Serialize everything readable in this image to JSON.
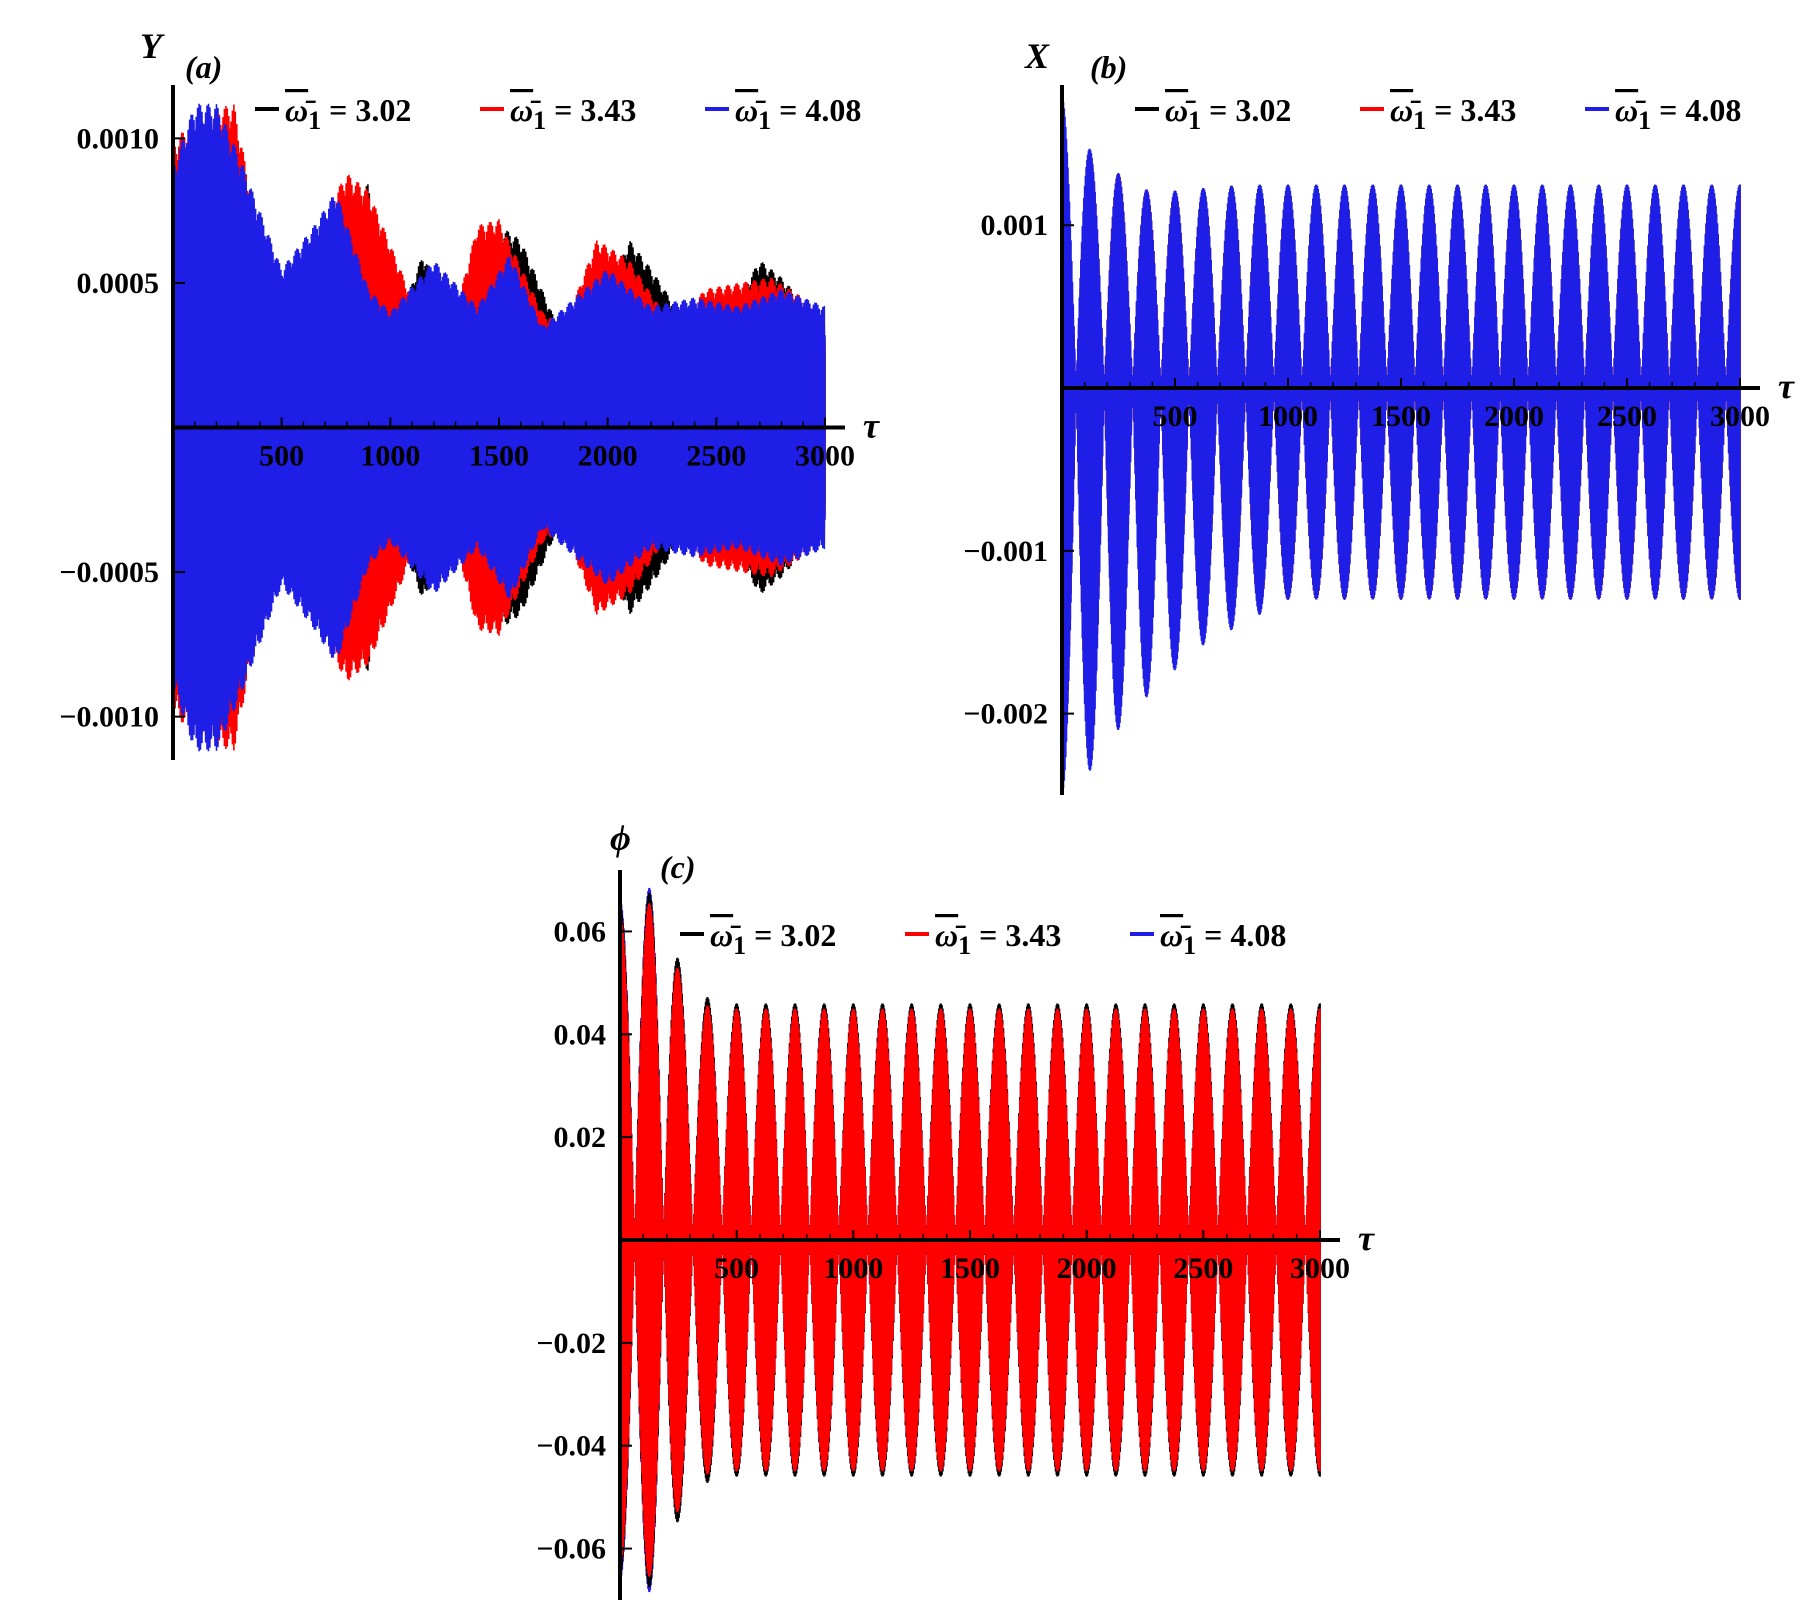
{
  "chart_data": [
    {
      "type": "line",
      "panel_label": "(a)",
      "ylabel": "Y",
      "xlabel": "τ",
      "xlim": [
        0,
        3000
      ],
      "ylim": [
        -0.00115,
        0.00115
      ],
      "xticks": [
        500,
        1000,
        1500,
        2000,
        2500,
        3000
      ],
      "xtick_labels": [
        "500",
        "1000",
        "1500",
        "2000",
        "2500",
        "3000"
      ],
      "yticks": [
        0.001,
        0.0005,
        -0.0005,
        -0.001
      ],
      "ytick_labels": [
        "0.0010",
        "0.0005",
        "−0.0005",
        "−0.0010"
      ],
      "legend_placement": "top",
      "series": [
        {
          "name": "ω̄₁ = 3.02",
          "legend_symbol": "ω̄",
          "legend_sub": "1",
          "legend_value": "= 3.02",
          "color": "#000000",
          "envelope": {
            "tau": [
              0,
              100,
              240,
              280,
              400,
              440,
              600,
              700,
              900,
              1000,
              1150,
              1300,
              1500,
              1600,
              1800,
              1900,
              2100,
              2200,
              2400,
              2500,
              2700,
              2800,
              3000
            ],
            "amp": [
              0.00095,
              0.00105,
              0.00108,
              0.00102,
              0.00035,
              0.00028,
              0.00062,
              0.00055,
              0.00085,
              0.0003,
              0.0006,
              0.00035,
              0.0007,
              0.00065,
              0.0003,
              0.0003,
              0.00065,
              0.00055,
              0.00032,
              0.00032,
              0.00058,
              0.00052,
              0.00035
            ]
          }
        },
        {
          "name": "ω̄₁ = 3.43",
          "legend_symbol": "ω̄",
          "legend_sub": "1",
          "legend_value": "= 3.43",
          "color": "#ff0000",
          "envelope": {
            "tau": [
              0,
              100,
              280,
              350,
              500,
              700,
              800,
              900,
              1100,
              1300,
              1400,
              1500,
              1700,
              1800,
              1950,
              2100,
              2300,
              2450,
              2600,
              2750,
              2900,
              3000
            ],
            "amp": [
              0.00098,
              0.00108,
              0.00112,
              0.00085,
              0.00045,
              0.00075,
              0.00088,
              0.00082,
              0.00045,
              0.0004,
              0.0007,
              0.00072,
              0.0004,
              0.00035,
              0.00065,
              0.00058,
              0.00035,
              0.00048,
              0.0005,
              0.00052,
              0.00045,
              0.0004
            ]
          }
        },
        {
          "name": "ω̄₁ = 4.08",
          "legend_symbol": "ω̄",
          "legend_sub": "1",
          "legend_value": "= 4.08",
          "color": "#1e1ee6",
          "envelope": {
            "tau": [
              0,
              100,
              200,
              300,
              500,
              650,
              750,
              900,
              1000,
              1200,
              1400,
              1550,
              1700,
              1850,
              2000,
              2200,
              2400,
              2600,
              2800,
              3000
            ],
            "amp": [
              0.0009,
              0.00112,
              0.00112,
              0.00095,
              0.00055,
              0.0007,
              0.00082,
              0.00048,
              0.0004,
              0.00058,
              0.00042,
              0.0006,
              0.00035,
              0.00045,
              0.00055,
              0.00042,
              0.00045,
              0.00042,
              0.00048,
              0.00042
            ]
          }
        }
      ]
    },
    {
      "type": "line",
      "panel_label": "(b)",
      "ylabel": "X",
      "xlabel": "τ",
      "xlim": [
        0,
        3000
      ],
      "ylim": [
        -0.0025,
        0.0018
      ],
      "xticks": [
        500,
        1000,
        1500,
        2000,
        2500,
        3000
      ],
      "xtick_labels": [
        "500",
        "1000",
        "1500",
        "2000",
        "2500",
        "3000"
      ],
      "yticks": [
        0.001,
        -0.001,
        -0.002
      ],
      "ytick_labels": [
        "0.001",
        "−0.001",
        "−0.002"
      ],
      "legend_placement": "top",
      "beat_period": 125,
      "series": [
        {
          "name": "ω̄₁ = 3.02",
          "legend_symbol": "ω̄",
          "legend_sub": "1",
          "legend_value": "= 3.02",
          "color": "#000000",
          "upper": {
            "tau": [
              0,
              150,
              400,
              800,
              3000
            ],
            "amp": [
              0.0014,
              0.0013,
              0.0012,
              0.00125,
              0.00125
            ]
          },
          "lower": {
            "tau": [
              0,
              100,
              300,
              600,
              1000,
              3000
            ],
            "amp": [
              -0.0024,
              -0.0023,
              -0.0018,
              -0.0015,
              -0.0013,
              -0.0013
            ]
          }
        },
        {
          "name": "ω̄₁ = 3.43",
          "legend_symbol": "ω̄",
          "legend_sub": "1",
          "legend_value": "= 3.43",
          "color": "#ff0000",
          "upper": {
            "tau": [
              0,
              150,
              400,
              800,
              3000
            ],
            "amp": [
              0.0015,
              0.0014,
              0.0012,
              0.0012,
              0.0012
            ]
          },
          "lower": {
            "tau": [
              0,
              100,
              300,
              600,
              1000,
              3000
            ],
            "amp": [
              -0.0024,
              -0.0023,
              -0.0018,
              -0.0015,
              -0.0013,
              -0.0013
            ]
          }
        },
        {
          "name": "ω̄₁ = 4.08",
          "legend_symbol": "ω̄",
          "legend_sub": "1",
          "legend_value": "= 4.08",
          "color": "#1e1ee6",
          "upper": {
            "tau": [
              0,
              150,
              400,
              800,
              3000
            ],
            "amp": [
              0.0018,
              0.0014,
              0.0012,
              0.00125,
              0.00125
            ]
          },
          "lower": {
            "tau": [
              0,
              100,
              300,
              600,
              1000,
              3000
            ],
            "amp": [
              -0.0025,
              -0.0024,
              -0.002,
              -0.0016,
              -0.0013,
              -0.0013
            ]
          }
        }
      ]
    },
    {
      "type": "line",
      "panel_label": "(c)",
      "ylabel": "ϕ",
      "xlabel": "τ",
      "xlim": [
        0,
        3000
      ],
      "ylim": [
        -0.07,
        0.07
      ],
      "xticks": [
        500,
        1000,
        1500,
        2000,
        2500,
        3000
      ],
      "xtick_labels": [
        "500",
        "1000",
        "1500",
        "2000",
        "2500",
        "3000"
      ],
      "yticks": [
        0.06,
        0.04,
        0.02,
        -0.02,
        -0.04,
        -0.06
      ],
      "ytick_labels": [
        "0.06",
        "0.04",
        "0.02",
        "−0.02",
        "−0.04",
        "−0.06"
      ],
      "legend_placement": "top",
      "beat_period": 125,
      "series": [
        {
          "name": "ω̄₁ = 3.02",
          "legend_symbol": "ω̄",
          "legend_sub": "1",
          "legend_value": "= 3.02",
          "color": "#000000",
          "envelope": {
            "tau": [
              0,
              150,
              300,
              500,
              3000
            ],
            "amp": [
              0.065,
              0.068,
              0.048,
              0.046,
              0.046
            ]
          }
        },
        {
          "name": "ω̄₁ = 3.43",
          "legend_symbol": "ω̄",
          "legend_sub": "1",
          "legend_value": "= 3.43",
          "color": "#ff0000",
          "envelope": {
            "tau": [
              0,
              150,
              300,
              500,
              3000
            ],
            "amp": [
              0.063,
              0.066,
              0.046,
              0.045,
              0.045
            ]
          }
        },
        {
          "name": "ω̄₁ = 4.08",
          "legend_symbol": "ω̄",
          "legend_sub": "1",
          "legend_value": "= 4.08",
          "color": "#1e1ee6",
          "envelope": {
            "tau": [
              0,
              150,
              300,
              500,
              3000
            ],
            "amp": [
              0.066,
              0.069,
              0.047,
              0.046,
              0.046
            ]
          }
        }
      ]
    }
  ]
}
